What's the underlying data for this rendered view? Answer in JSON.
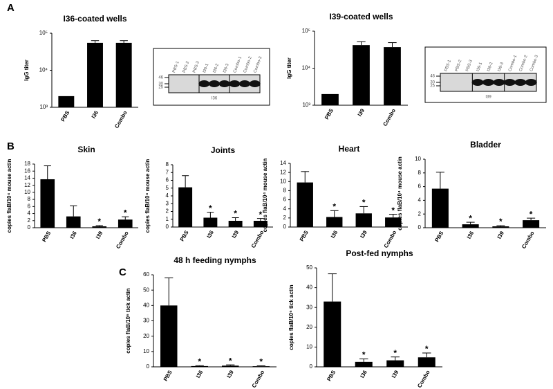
{
  "chart_data": [
    {
      "type": "bar",
      "panel": "A",
      "title": "I36-coated wells",
      "y_label": "IgG titer",
      "yscale": "log",
      "categories": [
        "PBS",
        "I36",
        "Combo"
      ],
      "values": [
        2000,
        55000,
        55000
      ],
      "errors": [
        null,
        8000,
        8000
      ],
      "ylim": [
        1000,
        100000
      ],
      "yticks": [
        {
          "value": 1000,
          "label": "10³"
        },
        {
          "value": 10000,
          "label": "10⁴"
        },
        {
          "value": 100000,
          "label": "10⁵"
        }
      ],
      "color": "#000000",
      "blot": {
        "lanes": [
          "PBS-1",
          "PBS-2",
          "PBS-3",
          "I36-1",
          "I36-2",
          "I36-3",
          "Combo-1",
          "Combo-2",
          "Combo-3"
        ],
        "markers": [
          46,
          30,
          25
        ],
        "caption": "I36"
      }
    },
    {
      "type": "bar",
      "title": "I39-coated wells",
      "y_label": "IgG titer",
      "yscale": "log",
      "categories": [
        "PBS",
        "I39",
        "Combo"
      ],
      "values": [
        2000,
        42000,
        37000
      ],
      "errors": [
        null,
        10000,
        12000
      ],
      "ylim": [
        1000,
        100000
      ],
      "yticks": [
        {
          "value": 1000,
          "label": "10³"
        },
        {
          "value": 10000,
          "label": "10⁴"
        },
        {
          "value": 100000,
          "label": "10⁵"
        }
      ],
      "color": "#000000",
      "blot": {
        "lanes": [
          "PBS-1",
          "PBS-2",
          "PBS-3",
          "I39-1",
          "I39-2",
          "I39-3",
          "Combo-1",
          "Combo-2",
          "Combo-3"
        ],
        "markers": [
          46,
          30,
          25
        ],
        "caption": "I39"
      }
    },
    {
      "type": "bar",
      "panel": "B",
      "title": "Skin",
      "y_label": "copies flaB/10⁴ mouse actin",
      "categories": [
        "PBS",
        "I36",
        "I39",
        "Combo"
      ],
      "values": [
        13.7,
        3.2,
        0.4,
        2.3
      ],
      "errors": [
        3.8,
        3.0,
        0.2,
        0.8
      ],
      "annotations": [
        {
          "x": "I39",
          "text": "*"
        },
        {
          "x": "Combo",
          "text": "*"
        }
      ],
      "ylim": [
        0,
        18
      ],
      "yticks": [
        0,
        2,
        4,
        6,
        8,
        10,
        12,
        14,
        16,
        18
      ],
      "color": "#000000"
    },
    {
      "type": "bar",
      "title": "Joints",
      "y_label": "copies flaB/10⁴ mouse actin",
      "categories": [
        "PBS",
        "I36",
        "I39",
        "Combo"
      ],
      "values": [
        5.1,
        1.2,
        0.8,
        0.8
      ],
      "errors": [
        1.5,
        0.7,
        0.4,
        0.3
      ],
      "annotations": [
        {
          "x": "I36",
          "text": "*"
        },
        {
          "x": "I39",
          "text": "*"
        },
        {
          "x": "Combo",
          "text": "*"
        }
      ],
      "ylim": [
        0,
        8
      ],
      "yticks": [
        0,
        1,
        2,
        3,
        4,
        5,
        6,
        7,
        8
      ],
      "color": "#000000"
    },
    {
      "type": "bar",
      "title": "Heart",
      "y_label": "copies flaB/10⁴ mouse actin",
      "categories": [
        "PBS",
        "I36",
        "I39",
        "Combo"
      ],
      "values": [
        9.8,
        2.2,
        3.0,
        2.1
      ],
      "errors": [
        2.4,
        1.4,
        1.5,
        0.7
      ],
      "annotations": [
        {
          "x": "I36",
          "text": "*"
        },
        {
          "x": "I39",
          "text": "*"
        },
        {
          "x": "Combo",
          "text": "*"
        }
      ],
      "ylim": [
        0,
        14
      ],
      "yticks": [
        0,
        2,
        4,
        6,
        8,
        10,
        12,
        14
      ],
      "color": "#000000"
    },
    {
      "type": "bar",
      "title": "Bladder",
      "y_label": "copies flaB/10⁴ mouse actin",
      "categories": [
        "PBS",
        "I36",
        "I39",
        "Combo"
      ],
      "values": [
        5.7,
        0.5,
        0.2,
        1.1
      ],
      "errors": [
        2.4,
        0.3,
        0.1,
        0.3
      ],
      "annotations": [
        {
          "x": "I36",
          "text": "*"
        },
        {
          "x": "I39",
          "text": "*"
        },
        {
          "x": "Combo",
          "text": "*"
        }
      ],
      "ylim": [
        0,
        10
      ],
      "yticks": [
        0,
        2,
        4,
        6,
        8,
        10
      ],
      "color": "#000000"
    },
    {
      "type": "bar",
      "panel": "C",
      "title": "48 h feeding nymphs",
      "y_label": "copies flaB/10⁶ tick actin",
      "categories": [
        "PBS",
        "I36",
        "I39",
        "Combo"
      ],
      "values": [
        40,
        0.5,
        0.8,
        0.4
      ],
      "errors": [
        18,
        0.3,
        0.5,
        0.3
      ],
      "annotations": [
        {
          "x": "I36",
          "text": "*"
        },
        {
          "x": "I39",
          "text": "*"
        },
        {
          "x": "Combo",
          "text": "*"
        }
      ],
      "ylim": [
        0,
        60
      ],
      "yticks": [
        0,
        10,
        20,
        30,
        40,
        50,
        60
      ],
      "color": "#000000"
    },
    {
      "type": "bar",
      "title": "Post-fed nymphs",
      "y_label": "copies flaB/10⁶ tick actin",
      "categories": [
        "PBS",
        "I36",
        "I39",
        "Combo"
      ],
      "values": [
        33,
        2.5,
        3.3,
        4.8
      ],
      "errors": [
        14,
        1.5,
        1.7,
        2.2
      ],
      "annotations": [
        {
          "x": "I36",
          "text": "*"
        },
        {
          "x": "I39",
          "text": "*"
        },
        {
          "x": "Combo",
          "text": "*"
        }
      ],
      "ylim": [
        0,
        50
      ],
      "yticks": [
        0,
        10,
        20,
        30,
        40,
        50
      ],
      "color": "#000000"
    }
  ]
}
